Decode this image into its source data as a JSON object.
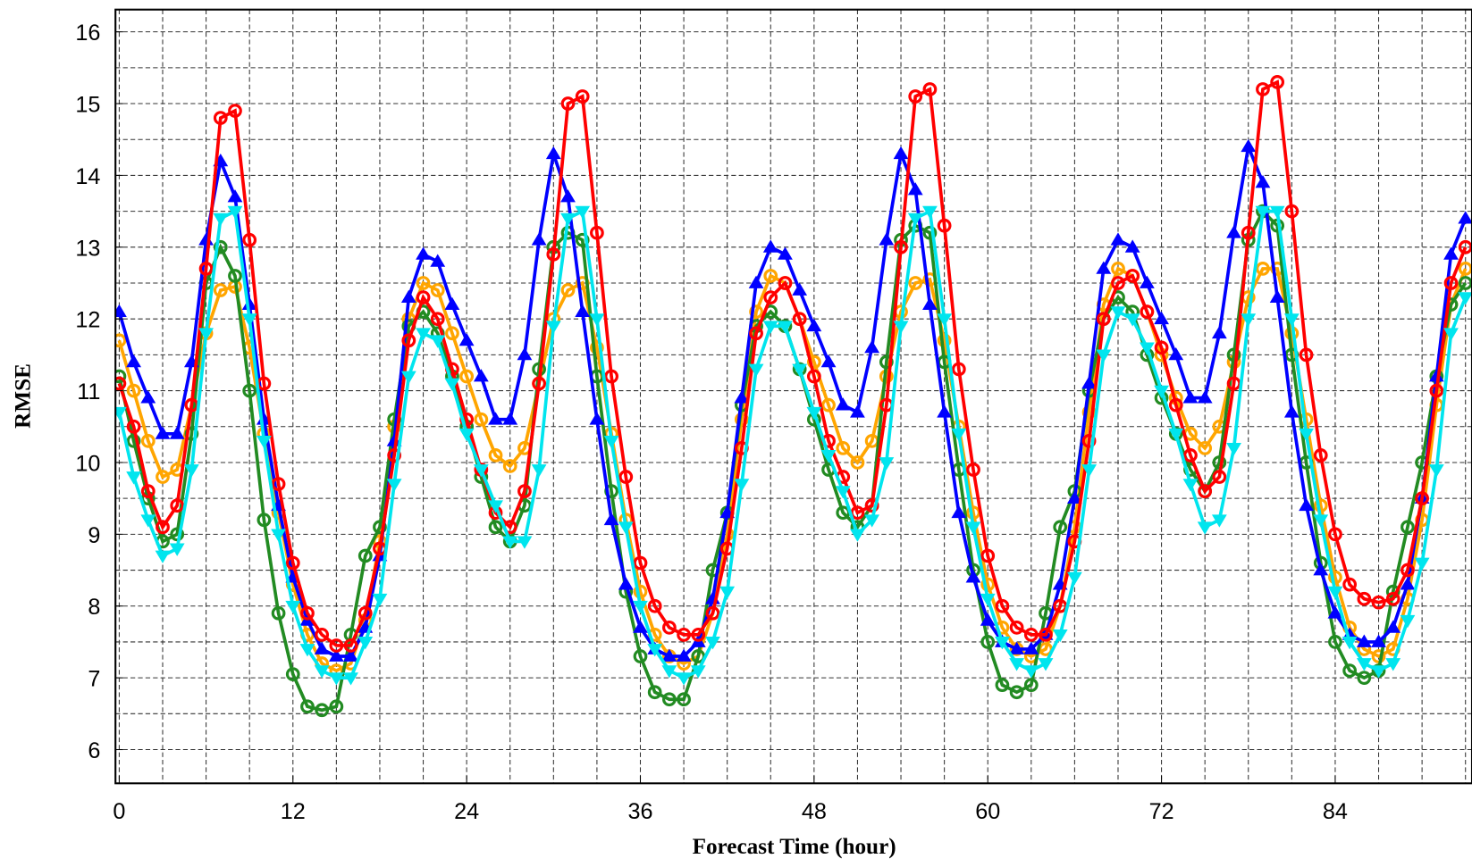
{
  "chart_data": {
    "type": "line",
    "xlabel": "Forecast Time (hour)",
    "ylabel": "RMSE",
    "xlim": [
      -0.26,
      93.45
    ],
    "ylim": [
      5.53,
      16.31
    ],
    "xticks": [
      0,
      12,
      24,
      36,
      48,
      60,
      72,
      84
    ],
    "yticks": [
      6,
      7,
      8,
      9,
      10,
      11,
      12,
      13,
      14,
      15,
      16
    ],
    "grid": true,
    "xgrid": [
      0,
      3,
      6,
      9,
      12,
      15,
      18,
      21,
      24,
      27,
      30,
      33,
      36,
      39,
      42,
      45,
      48,
      51,
      54,
      57,
      60,
      63,
      66,
      69,
      72,
      75,
      78,
      81,
      84,
      87,
      90,
      93
    ],
    "ygrid": [
      6,
      6.5,
      7,
      7.5,
      8,
      8.5,
      9,
      9.5,
      10,
      10.5,
      11,
      11.5,
      12,
      12.5,
      13,
      13.5,
      14,
      14.5,
      15,
      15.5,
      16
    ],
    "x": [
      0,
      1,
      2,
      3,
      4,
      5,
      6,
      7,
      8,
      9,
      10,
      11,
      12,
      13,
      14,
      15,
      16,
      17,
      18,
      19,
      20,
      21,
      22,
      23,
      24,
      25,
      26,
      27,
      28,
      29,
      30,
      31,
      32,
      33,
      34,
      35,
      36,
      37,
      38,
      39,
      40,
      41,
      42,
      43,
      44,
      45,
      46,
      47,
      48,
      49,
      50,
      51,
      52,
      53,
      54,
      55,
      56,
      57,
      58,
      59,
      60,
      61,
      62,
      63,
      64,
      65,
      66,
      67,
      68,
      69,
      70,
      71,
      72,
      73,
      74,
      75,
      76,
      77,
      78,
      79,
      80,
      81,
      82,
      83,
      84,
      85,
      86,
      87,
      88,
      89,
      90,
      91,
      92,
      93
    ],
    "series": [
      {
        "color": "#ffa500",
        "marker": "circle",
        "values": [
          11.7,
          11.0,
          10.3,
          9.8,
          9.9,
          10.8,
          11.8,
          12.4,
          12.45,
          11.6,
          10.4,
          9.3,
          8.3,
          7.6,
          7.2,
          7.1,
          7.2,
          7.8,
          8.9,
          10.5,
          12.0,
          12.5,
          12.4,
          11.8,
          11.2,
          10.6,
          10.1,
          9.95,
          10.2,
          11.1,
          12.0,
          12.4,
          12.5,
          11.6,
          10.4,
          9.2,
          8.2,
          7.6,
          7.3,
          7.2,
          7.3,
          7.9,
          9.0,
          10.6,
          12.1,
          12.6,
          12.5,
          12.0,
          11.4,
          10.8,
          10.2,
          10.0,
          10.3,
          11.2,
          12.1,
          12.5,
          12.55,
          11.7,
          10.5,
          9.3,
          8.3,
          7.7,
          7.4,
          7.3,
          7.4,
          8.0,
          9.1,
          10.7,
          12.2,
          12.7,
          12.6,
          12.1,
          11.5,
          10.9,
          10.4,
          10.2,
          10.5,
          11.4,
          12.3,
          12.7,
          12.7,
          11.8,
          10.6,
          9.4,
          8.4,
          7.7,
          7.4,
          7.3,
          7.4,
          8.1,
          9.2,
          10.8,
          12.2,
          12.7
        ]
      },
      {
        "color": "#228b22",
        "marker": "circle",
        "values": [
          11.2,
          10.3,
          9.5,
          8.9,
          9.0,
          10.4,
          12.5,
          13.0,
          12.6,
          11.0,
          9.2,
          7.9,
          7.05,
          6.6,
          6.55,
          6.6,
          7.6,
          8.7,
          9.1,
          10.6,
          11.9,
          12.1,
          11.8,
          11.2,
          10.5,
          9.8,
          9.1,
          8.9,
          9.4,
          11.3,
          13.0,
          13.2,
          13.1,
          11.2,
          9.6,
          8.2,
          7.3,
          6.8,
          6.7,
          6.7,
          7.3,
          8.5,
          9.3,
          10.8,
          11.9,
          12.1,
          11.9,
          11.3,
          10.6,
          9.9,
          9.3,
          9.1,
          9.4,
          11.4,
          13.1,
          13.3,
          13.2,
          11.4,
          9.9,
          8.5,
          7.5,
          6.9,
          6.8,
          6.9,
          7.9,
          9.1,
          9.6,
          11.0,
          12.0,
          12.3,
          12.1,
          11.5,
          10.9,
          10.4,
          9.9,
          9.6,
          10.0,
          11.5,
          13.1,
          13.5,
          13.3,
          11.5,
          10.0,
          8.6,
          7.5,
          7.1,
          7.0,
          7.1,
          8.2,
          9.1,
          10.0,
          11.2,
          12.2,
          12.5
        ]
      },
      {
        "color": "#0000ff",
        "marker": "triangle-up",
        "values": [
          12.1,
          11.4,
          10.9,
          10.4,
          10.4,
          11.4,
          13.1,
          14.2,
          13.7,
          12.2,
          10.6,
          9.4,
          8.4,
          7.8,
          7.4,
          7.3,
          7.3,
          7.7,
          8.7,
          10.3,
          12.3,
          12.9,
          12.8,
          12.2,
          11.7,
          11.2,
          10.6,
          10.6,
          11.5,
          13.1,
          14.3,
          13.7,
          12.1,
          10.6,
          9.2,
          8.3,
          7.7,
          7.4,
          7.3,
          7.3,
          7.5,
          8.1,
          9.3,
          10.9,
          12.5,
          13.0,
          12.9,
          12.4,
          11.9,
          11.4,
          10.8,
          10.7,
          11.6,
          13.1,
          14.3,
          13.8,
          12.2,
          10.7,
          9.3,
          8.4,
          7.8,
          7.5,
          7.4,
          7.4,
          7.6,
          8.3,
          9.5,
          11.1,
          12.7,
          13.1,
          13.0,
          12.5,
          12.0,
          11.5,
          10.9,
          10.9,
          11.8,
          13.2,
          14.4,
          13.9,
          12.3,
          10.7,
          9.4,
          8.5,
          7.9,
          7.6,
          7.5,
          7.5,
          7.7,
          8.3,
          9.5,
          11.2,
          12.9,
          13.4
        ]
      },
      {
        "color": "#ff0000",
        "marker": "circle",
        "values": [
          11.1,
          10.5,
          9.6,
          9.1,
          9.4,
          10.8,
          12.7,
          14.8,
          14.9,
          13.1,
          11.1,
          9.7,
          8.6,
          7.9,
          7.6,
          7.45,
          7.45,
          7.9,
          8.8,
          10.1,
          11.7,
          12.3,
          12.0,
          11.3,
          10.6,
          9.9,
          9.3,
          9.1,
          9.6,
          11.1,
          12.9,
          15.0,
          15.1,
          13.2,
          11.2,
          9.8,
          8.6,
          8.0,
          7.7,
          7.6,
          7.6,
          7.9,
          8.8,
          10.2,
          11.8,
          12.3,
          12.5,
          12.0,
          11.2,
          10.3,
          9.8,
          9.3,
          9.4,
          10.8,
          13.0,
          15.1,
          15.2,
          13.3,
          11.3,
          9.9,
          8.7,
          8.0,
          7.7,
          7.6,
          7.6,
          8.0,
          8.9,
          10.3,
          12.0,
          12.5,
          12.6,
          12.1,
          11.6,
          10.8,
          10.1,
          9.6,
          9.8,
          11.1,
          13.2,
          15.2,
          15.3,
          13.5,
          11.5,
          10.1,
          9.0,
          8.3,
          8.1,
          8.05,
          8.1,
          8.5,
          9.5,
          11.0,
          12.5,
          13.0
        ]
      },
      {
        "color": "#00e5ee",
        "marker": "triangle-down",
        "values": [
          10.7,
          9.8,
          9.2,
          8.7,
          8.8,
          9.9,
          11.8,
          13.4,
          13.5,
          12.0,
          10.3,
          9.0,
          8.0,
          7.4,
          7.1,
          7.0,
          7.0,
          7.5,
          8.1,
          9.7,
          11.2,
          11.8,
          11.7,
          11.1,
          10.4,
          9.9,
          9.4,
          8.9,
          8.9,
          9.9,
          11.9,
          13.4,
          13.5,
          12.0,
          10.3,
          9.1,
          8.0,
          7.4,
          7.1,
          7.0,
          7.1,
          7.5,
          8.2,
          9.7,
          11.3,
          11.9,
          11.9,
          11.3,
          10.7,
          10.1,
          9.6,
          9.0,
          9.2,
          10.0,
          11.9,
          13.4,
          13.5,
          12.0,
          10.4,
          9.1,
          8.1,
          7.5,
          7.2,
          7.1,
          7.2,
          7.6,
          8.4,
          9.9,
          11.5,
          12.1,
          12.0,
          11.6,
          11.0,
          10.4,
          9.7,
          9.1,
          9.2,
          10.2,
          12.0,
          13.5,
          13.5,
          12.0,
          10.4,
          9.2,
          8.2,
          7.5,
          7.2,
          7.1,
          7.2,
          7.8,
          8.6,
          9.9,
          11.8,
          12.3
        ]
      }
    ]
  }
}
